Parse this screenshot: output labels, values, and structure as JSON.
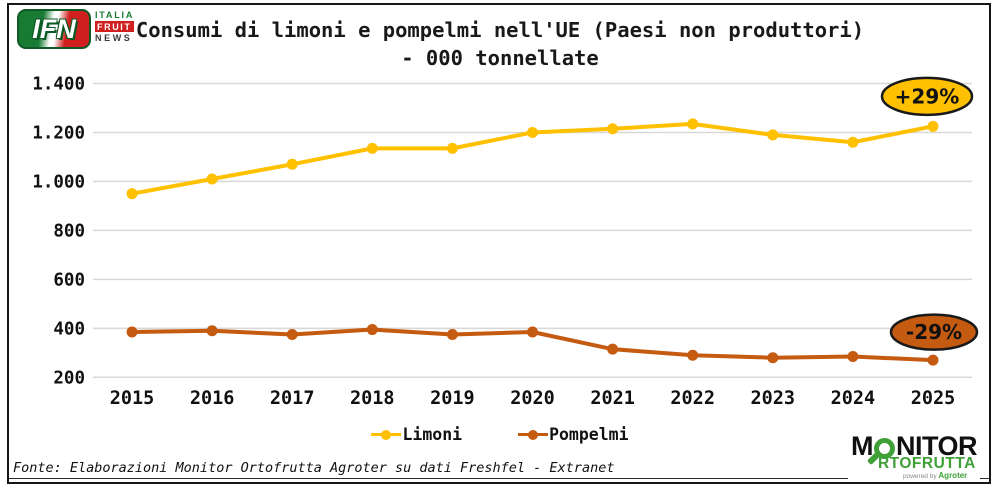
{
  "header": {
    "ifn_logo": {
      "acronym": "IFN",
      "italia": "ITALIA",
      "fruit": "FRUIT",
      "news": "NEWS"
    },
    "title_line1": "Consumi di limoni e pompelmi nell'UE (Paesi non produttori)",
    "title_line2": "- 000 tonnellate"
  },
  "chart_data": {
    "type": "line",
    "title": "Consumi di limoni e pompelmi nell'UE (Paesi non produttori) - 000 tonnellate",
    "unit": "000 tonnellate",
    "categories": [
      "2015",
      "2016",
      "2017",
      "2018",
      "2019",
      "2020",
      "2021",
      "2022",
      "2023",
      "2024",
      "2025"
    ],
    "series": [
      {
        "name": "Limoni",
        "color": "#FFC000",
        "values": [
          950,
          1010,
          1070,
          1135,
          1135,
          1200,
          1215,
          1235,
          1190,
          1160,
          1225
        ]
      },
      {
        "name": "Pompelmi",
        "color": "#C55A11",
        "values": [
          385,
          390,
          375,
          395,
          375,
          385,
          315,
          290,
          280,
          285,
          270
        ]
      }
    ],
    "y_ticks": [
      "1.400",
      "1.200",
      "1.000",
      "800",
      "600",
      "400",
      "200"
    ],
    "y_tick_values": [
      1400,
      1200,
      1000,
      800,
      600,
      400,
      200
    ],
    "ylim": [
      200,
      1400
    ],
    "grid": true,
    "gridline_color": "#D8D8D8",
    "legend_position": "bottom",
    "annotations": [
      {
        "text": "+29%",
        "series": "Limoni",
        "fill": "#FFC000",
        "border": "#1a1a1a"
      },
      {
        "text": "-29%",
        "series": "Pompelmi",
        "fill": "#C55A11",
        "border": "#1a1a1a"
      }
    ]
  },
  "legend": {
    "items": [
      {
        "label": "Limoni",
        "color": "#FFC000"
      },
      {
        "label": "Pompelmi",
        "color": "#C55A11"
      }
    ]
  },
  "footer": {
    "source": "Fonte: Elaborazioni Monitor Ortofrutta Agroter su dati Freshfel - Extranet"
  },
  "monitor_logo": {
    "part1": "M",
    "part2": "NITOR",
    "line2": "RTOFRUTTA",
    "powered_by": "powered by",
    "brand": "Agroter"
  }
}
